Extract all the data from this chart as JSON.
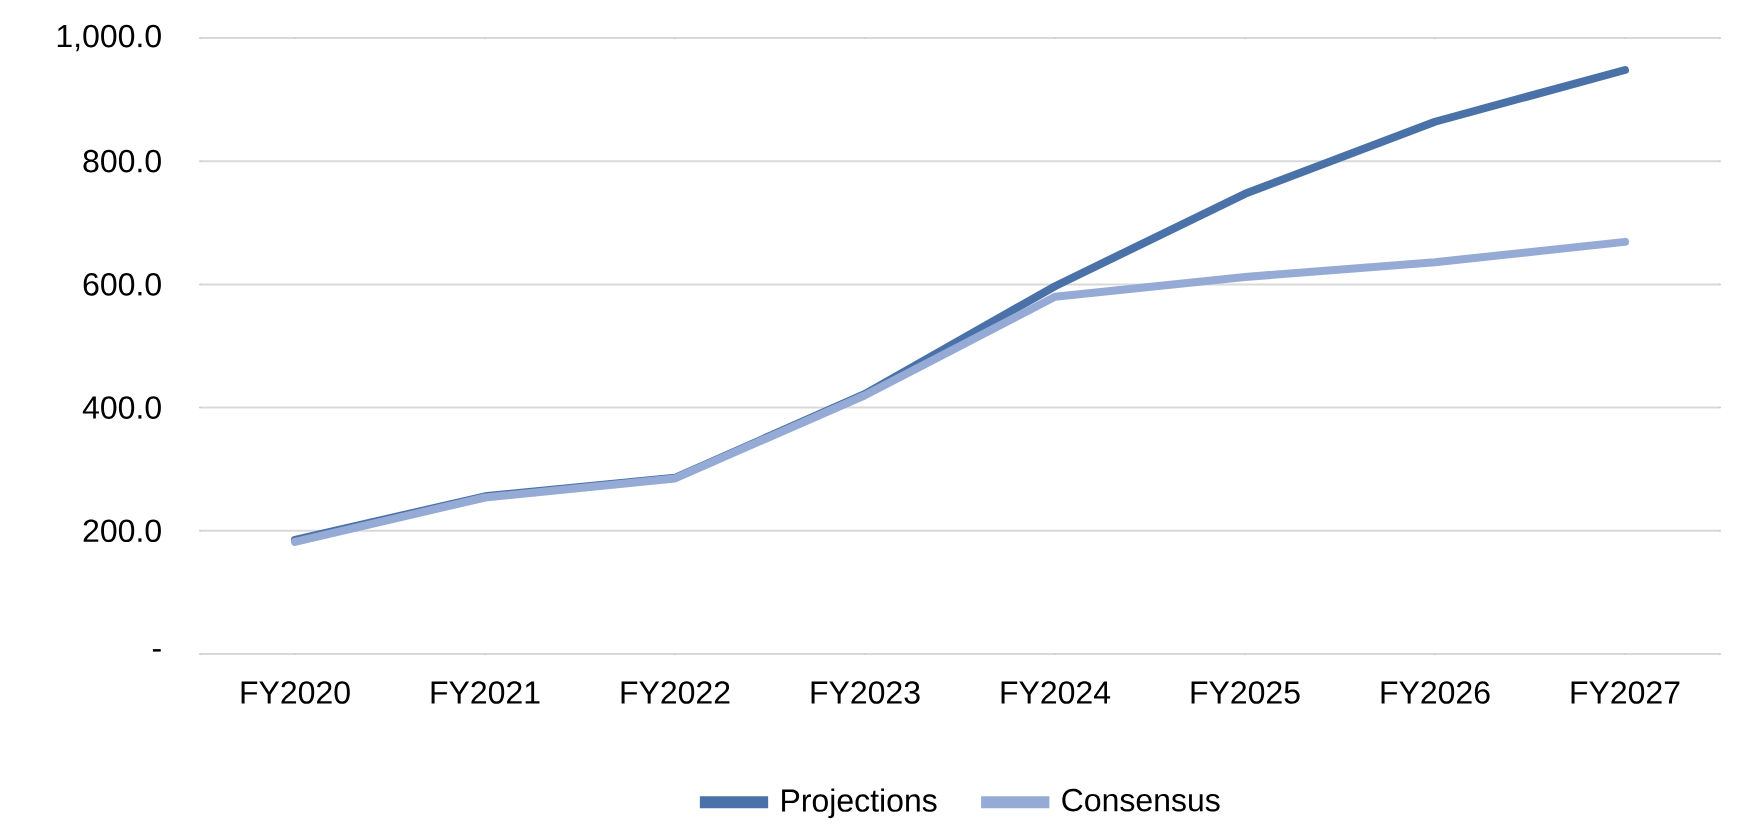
{
  "chart_data": {
    "type": "line",
    "categories": [
      "FY2020",
      "FY2021",
      "FY2022",
      "FY2023",
      "FY2024",
      "FY2025",
      "FY2026",
      "FY2027"
    ],
    "series": [
      {
        "name": "Projections",
        "color": "#4a72a8",
        "values": [
          185,
          256,
          286,
          422,
          597,
          747,
          864,
          948
        ]
      },
      {
        "name": "Consensus",
        "color": "#95abd6",
        "values": [
          182,
          254,
          285,
          420,
          580,
          612,
          636,
          669
        ]
      }
    ],
    "ylim": [
      0,
      1000
    ],
    "yticks": [
      {
        "value": 0,
        "label": "-"
      },
      {
        "value": 200,
        "label": "200.0"
      },
      {
        "value": 400,
        "label": "400.0"
      },
      {
        "value": 600,
        "label": "600.0"
      },
      {
        "value": 800,
        "label": "800.0"
      },
      {
        "value": 1000,
        "label": "1,000.0"
      }
    ],
    "grid": "y",
    "legend": "bottom",
    "marker": "none",
    "line_style": "solid"
  }
}
